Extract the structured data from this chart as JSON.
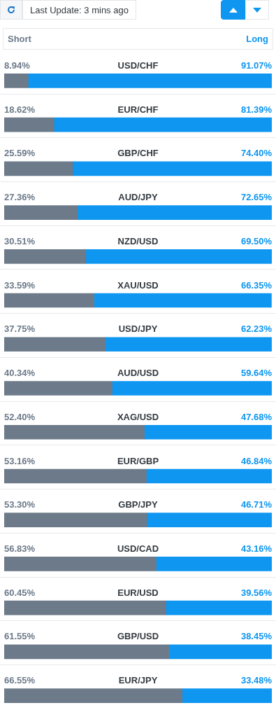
{
  "chart_data": {
    "type": "bar",
    "orientation": "horizontal",
    "stacked": true,
    "title": "Last Update: 3 mins ago",
    "categories": [
      "USD/CHF",
      "EUR/CHF",
      "GBP/CHF",
      "AUD/JPY",
      "NZD/USD",
      "XAU/USD",
      "USD/JPY",
      "AUD/USD",
      "XAG/USD",
      "EUR/GBP",
      "GBP/JPY",
      "USD/CAD",
      "EUR/USD",
      "GBP/USD",
      "EUR/JPY"
    ],
    "series": [
      {
        "name": "Short",
        "color": "#6c7a89",
        "values": [
          8.94,
          18.62,
          25.59,
          27.36,
          30.51,
          33.59,
          37.75,
          40.34,
          52.4,
          53.16,
          53.3,
          56.83,
          60.45,
          61.55,
          66.55
        ],
        "value_labels": [
          "8.94%",
          "18.62%",
          "25.59%",
          "27.36%",
          "30.51%",
          "33.59%",
          "37.75%",
          "40.34%",
          "52.40%",
          "53.16%",
          "53.30%",
          "56.83%",
          "60.45%",
          "61.55%",
          "66.55%"
        ]
      },
      {
        "name": "Long",
        "color": "#0e96f0",
        "values": [
          91.07,
          81.39,
          74.4,
          72.65,
          69.5,
          66.35,
          62.23,
          59.64,
          47.68,
          46.84,
          46.71,
          43.16,
          39.56,
          38.45,
          33.48
        ],
        "value_labels": [
          "91.07%",
          "81.39%",
          "74.40%",
          "72.65%",
          "69.50%",
          "66.35%",
          "62.23%",
          "59.64%",
          "47.68%",
          "46.84%",
          "46.71%",
          "43.16%",
          "39.56%",
          "38.45%",
          "33.48%"
        ]
      }
    ],
    "grid": "y",
    "tick_labels": false,
    "legend": false
  }
}
